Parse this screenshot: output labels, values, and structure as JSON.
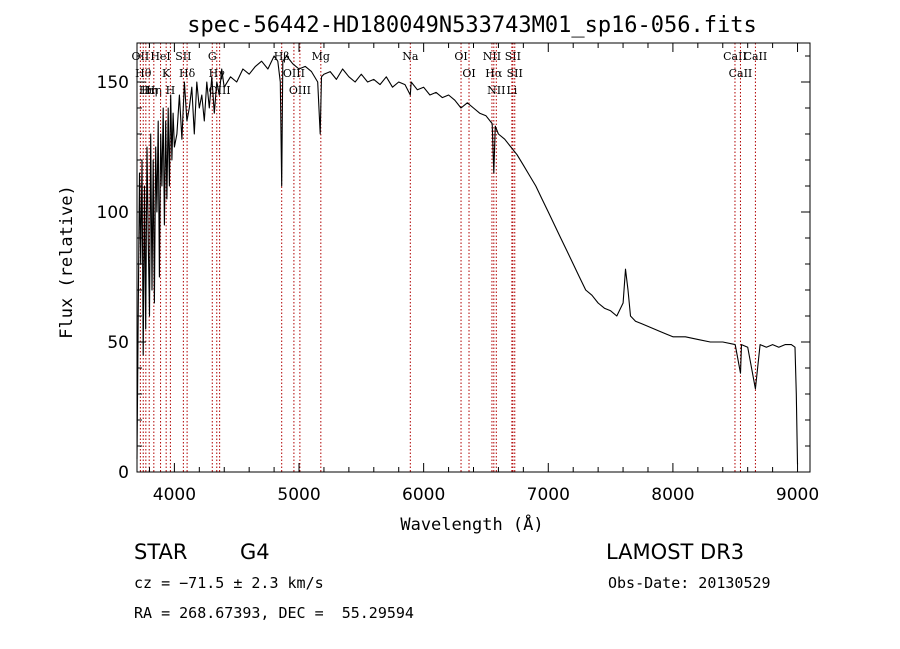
{
  "chart_data": {
    "type": "line",
    "title": "spec-56442-HD180049N533743M01_sp16-056.fits",
    "xlabel": "Wavelength (Å)",
    "ylabel": "Flux (relative)",
    "xlim": [
      3700,
      9100
    ],
    "ylim": [
      0,
      165
    ],
    "xticks": [
      4000,
      5000,
      6000,
      7000,
      8000,
      9000
    ],
    "yticks": [
      0,
      50,
      100,
      150
    ],
    "xtick_labels": [
      "4000",
      "5000",
      "6000",
      "7000",
      "8000",
      "9000"
    ],
    "ytick_labels": [
      "0",
      "50",
      "100",
      "150"
    ],
    "series": [
      {
        "name": "spectrum",
        "color": "#000000",
        "x": [
          3700,
          3710,
          3720,
          3730,
          3740,
          3750,
          3760,
          3770,
          3780,
          3790,
          3800,
          3810,
          3820,
          3830,
          3840,
          3850,
          3860,
          3870,
          3880,
          3890,
          3900,
          3910,
          3920,
          3930,
          3940,
          3950,
          3960,
          3970,
          3980,
          3990,
          4000,
          4020,
          4040,
          4060,
          4080,
          4100,
          4120,
          4140,
          4160,
          4180,
          4200,
          4220,
          4240,
          4260,
          4280,
          4300,
          4320,
          4340,
          4360,
          4380,
          4400,
          4450,
          4500,
          4550,
          4600,
          4650,
          4700,
          4750,
          4800,
          4830,
          4850,
          4861,
          4870,
          4900,
          4950,
          5000,
          5050,
          5100,
          5150,
          5170,
          5180,
          5200,
          5250,
          5300,
          5350,
          5400,
          5450,
          5500,
          5550,
          5600,
          5650,
          5700,
          5750,
          5800,
          5850,
          5893,
          5900,
          5950,
          6000,
          6050,
          6100,
          6150,
          6200,
          6250,
          6300,
          6350,
          6400,
          6450,
          6500,
          6550,
          6563,
          6575,
          6600,
          6650,
          6700,
          6750,
          6800,
          6850,
          6900,
          6950,
          7000,
          7050,
          7100,
          7150,
          7200,
          7250,
          7300,
          7350,
          7400,
          7450,
          7500,
          7550,
          7600,
          7620,
          7640,
          7660,
          7700,
          7750,
          7800,
          7850,
          7900,
          7950,
          8000,
          8100,
          8200,
          8300,
          8400,
          8500,
          8542,
          8550,
          8600,
          8662,
          8700,
          8750,
          8800,
          8850,
          8900,
          8950,
          8980,
          8990,
          9000
        ],
        "y": [
          5,
          60,
          115,
          80,
          120,
          45,
          110,
          55,
          125,
          90,
          60,
          130,
          70,
          120,
          65,
          125,
          100,
          135,
          75,
          130,
          110,
          140,
          95,
          135,
          105,
          140,
          110,
          145,
          120,
          138,
          125,
          130,
          145,
          128,
          150,
          135,
          140,
          148,
          130,
          150,
          140,
          145,
          135,
          150,
          140,
          152,
          138,
          150,
          145,
          155,
          148,
          152,
          150,
          155,
          153,
          156,
          158,
          155,
          160,
          158,
          150,
          110,
          158,
          160,
          157,
          155,
          156,
          154,
          150,
          130,
          152,
          153,
          154,
          151,
          155,
          152,
          150,
          153,
          150,
          151,
          149,
          152,
          148,
          150,
          149,
          145,
          150,
          147,
          148,
          145,
          146,
          144,
          145,
          143,
          140,
          142,
          140,
          138,
          137,
          134,
          115,
          133,
          130,
          128,
          125,
          122,
          118,
          114,
          110,
          105,
          100,
          95,
          90,
          85,
          80,
          75,
          70,
          68,
          65,
          63,
          62,
          60,
          65,
          78,
          70,
          60,
          58,
          57,
          56,
          55,
          54,
          53,
          52,
          52,
          51,
          50,
          50,
          49,
          38,
          49,
          48,
          32,
          49,
          48,
          49,
          48,
          49,
          49,
          48,
          30,
          3
        ]
      }
    ],
    "line_markers": [
      {
        "x": 3727,
        "label": "OII"
      },
      {
        "x": 3750,
        "label": "Hθ"
      },
      {
        "x": 3771,
        "label": "Hι"
      },
      {
        "x": 3798,
        "label": "Hη"
      },
      {
        "x": 3835,
        "label": "Hη"
      },
      {
        "x": 3889,
        "label": "HeI"
      },
      {
        "x": 3934,
        "label": "K"
      },
      {
        "x": 3968,
        "label": "H"
      },
      {
        "x": 4072,
        "label": "SII"
      },
      {
        "x": 4102,
        "label": "Hδ"
      },
      {
        "x": 4304,
        "label": "G"
      },
      {
        "x": 4340,
        "label": "Hγ"
      },
      {
        "x": 4363,
        "label": "OIII"
      },
      {
        "x": 4861,
        "label": "Hβ"
      },
      {
        "x": 4959,
        "label": "OIII"
      },
      {
        "x": 5007,
        "label": "OIII"
      },
      {
        "x": 5175,
        "label": "Mg"
      },
      {
        "x": 5893,
        "label": "Na"
      },
      {
        "x": 6300,
        "label": "OI"
      },
      {
        "x": 6364,
        "label": "OI"
      },
      {
        "x": 6548,
        "label": "NII"
      },
      {
        "x": 6563,
        "label": "Hα"
      },
      {
        "x": 6583,
        "label": "NII"
      },
      {
        "x": 6708,
        "label": "Li"
      },
      {
        "x": 6716,
        "label": "SII"
      },
      {
        "x": 6731,
        "label": "SII"
      },
      {
        "x": 8498,
        "label": "CaII"
      },
      {
        "x": 8542,
        "label": "CaII"
      },
      {
        "x": 8662,
        "label": "CaII"
      }
    ],
    "line_marker_color": "#b00000"
  },
  "info": {
    "object_class": "STAR",
    "subclass": "G4",
    "survey": "LAMOST DR3",
    "redshift": "cz = −71.5 ± 2.3 km/s",
    "obs_date": "Obs-Date: 20130529",
    "coords": "RA = 268.67393, DEC =  55.29594"
  }
}
